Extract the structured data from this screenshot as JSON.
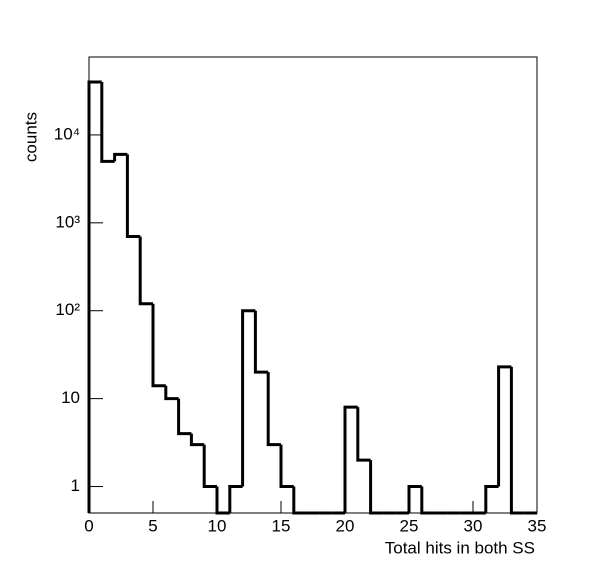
{
  "chart_data": {
    "type": "histogram",
    "xlabel": "Total hits in both SS",
    "ylabel": "counts",
    "bins": [
      0,
      1,
      2,
      3,
      4,
      5,
      6,
      7,
      8,
      9,
      10,
      11,
      12,
      13,
      14,
      15,
      16,
      17,
      18,
      19,
      20,
      21,
      22,
      23,
      24,
      25,
      26,
      27,
      28,
      29,
      30,
      31,
      32,
      33,
      34,
      35
    ],
    "values": [
      40000,
      5000,
      6000,
      700,
      120,
      14,
      10,
      4,
      3,
      1,
      0,
      1,
      100,
      20,
      3,
      1,
      0,
      0,
      0,
      0,
      8,
      2,
      0,
      0,
      0,
      1,
      0,
      0,
      0,
      0,
      0,
      1,
      23,
      0,
      0
    ],
    "color": "#000000",
    "xlim": [
      0,
      35
    ],
    "xticks": [
      0,
      5,
      10,
      15,
      20,
      25,
      30,
      35
    ],
    "ylim": [
      0.5,
      77000
    ],
    "yticks": [
      1,
      10,
      {
        "value": 100,
        "label": "10²"
      },
      {
        "value": 1000,
        "label": "10³"
      },
      {
        "value": 10000,
        "label": "10⁴"
      }
    ],
    "log_y": true
  }
}
